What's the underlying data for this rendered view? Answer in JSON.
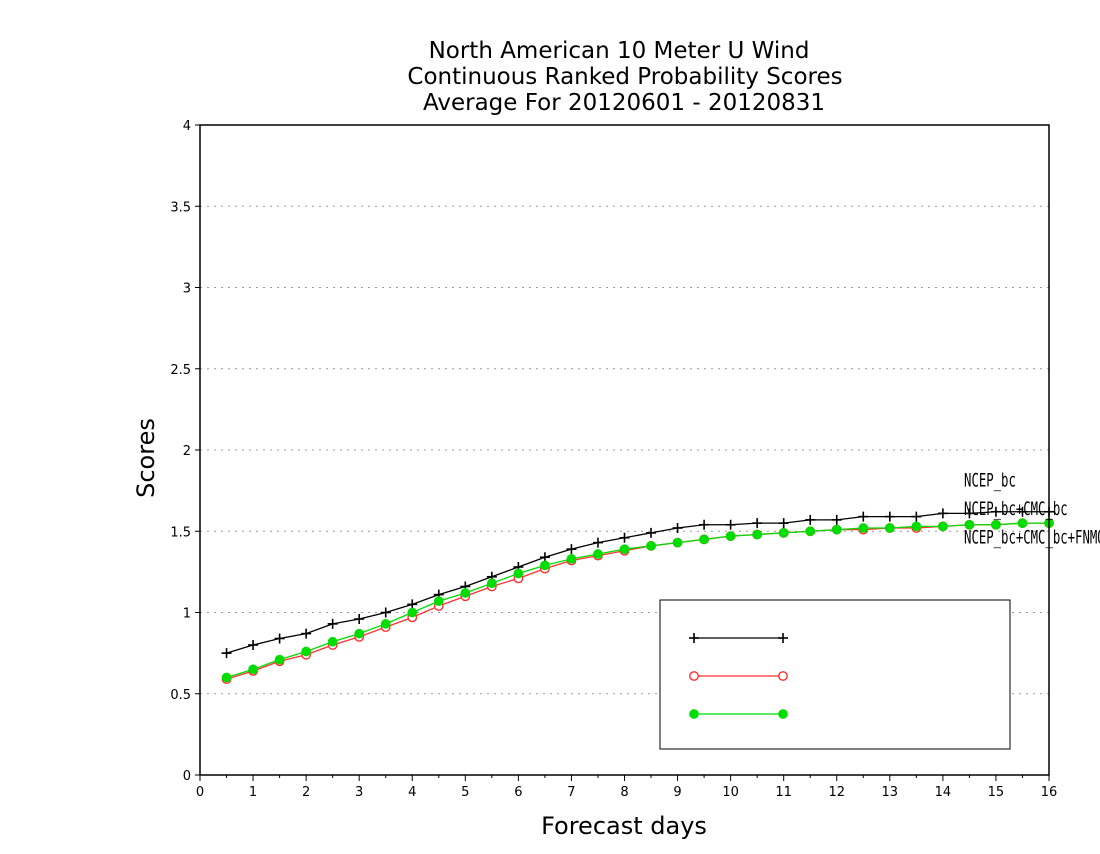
{
  "chart_data": {
    "type": "line",
    "title": [
      "North American 10 Meter U Wind",
      "Continuous Ranked Probability Scores",
      "Average For 20120601 - 20120831"
    ],
    "xlabel": "Forecast days",
    "ylabel": "Scores",
    "xlim": [
      0,
      16
    ],
    "ylim": [
      0,
      4
    ],
    "x_ticks": [
      "0",
      "1",
      "2",
      "3",
      "4",
      "5",
      "6",
      "7",
      "8",
      "9",
      "10",
      "11",
      "12",
      "13",
      "14",
      "15",
      "16"
    ],
    "y_ticks": [
      "0",
      "0.5",
      "1",
      "1.5",
      "2",
      "2.5",
      "3",
      "3.5",
      "4"
    ],
    "grid": "horizontal-dotted",
    "legend_position": "bottom-right",
    "x": [
      0.5,
      1,
      1.5,
      2,
      2.5,
      3,
      3.5,
      4,
      4.5,
      5,
      5.5,
      6,
      6.5,
      7,
      7.5,
      8,
      8.5,
      9,
      9.5,
      10,
      10.5,
      11,
      11.5,
      12,
      12.5,
      13,
      13.5,
      14,
      14.5,
      15,
      15.5,
      16
    ],
    "series": [
      {
        "name": "NCEP_bc",
        "color": "#000000",
        "marker": "plus",
        "values": [
          0.75,
          0.8,
          0.84,
          0.87,
          0.93,
          0.96,
          1.0,
          1.05,
          1.11,
          1.16,
          1.22,
          1.28,
          1.34,
          1.39,
          1.43,
          1.46,
          1.49,
          1.52,
          1.54,
          1.54,
          1.55,
          1.55,
          1.57,
          1.57,
          1.59,
          1.59,
          1.59,
          1.61,
          1.61,
          1.62,
          1.62,
          1.62
        ]
      },
      {
        "name": "NCEP_bc+CMC_bc",
        "color": "#ff3030",
        "marker": "open-circle",
        "values": [
          0.59,
          0.64,
          0.7,
          0.74,
          0.8,
          0.85,
          0.91,
          0.97,
          1.04,
          1.1,
          1.16,
          1.21,
          1.27,
          1.32,
          1.35,
          1.38,
          1.41,
          1.43,
          1.45,
          1.47,
          1.48,
          1.49,
          1.5,
          1.51,
          1.51,
          1.52,
          1.52,
          1.53,
          1.54,
          1.54,
          1.55,
          1.55
        ]
      },
      {
        "name": "NCEP_bc+CMC_bc+FNMOC_bc",
        "color": "#00dd00",
        "marker": "filled-circle",
        "values": [
          0.6,
          0.65,
          0.71,
          0.76,
          0.82,
          0.87,
          0.93,
          1.0,
          1.07,
          1.12,
          1.18,
          1.24,
          1.29,
          1.33,
          1.36,
          1.39,
          1.41,
          1.43,
          1.45,
          1.47,
          1.48,
          1.49,
          1.5,
          1.51,
          1.52,
          1.52,
          1.53,
          1.53,
          1.54,
          1.54,
          1.55,
          1.55
        ]
      }
    ]
  }
}
